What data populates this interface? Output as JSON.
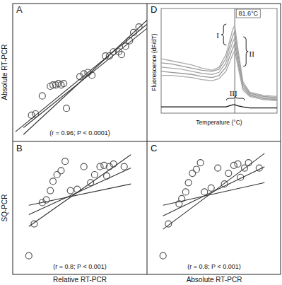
{
  "chart_data": [
    {
      "type": "scatter",
      "title": "A",
      "y_label": "Absolute RT-PCR",
      "annotation": "(r = 0.96; P < 0.0001)",
      "xlim": [
        0,
        10
      ],
      "ylim": [
        0,
        10
      ],
      "tick_labels": false,
      "series": [
        {
          "type": "scatter",
          "marker": "circle",
          "color": "#555555",
          "x": [
            1.4,
            1.7,
            2.2,
            2.8,
            3.0,
            3.2,
            3.4,
            3.6,
            3.8,
            4.0,
            5.0,
            5.3,
            5.6,
            5.9,
            6.9,
            7.2,
            7.5,
            7.9,
            8.1,
            8.4,
            8.7,
            9.0,
            9.4
          ],
          "values": [
            1.9,
            2.0,
            3.3,
            4.0,
            4.1,
            4.1,
            4.2,
            4.1,
            4.2,
            2.4,
            4.7,
            4.9,
            5.0,
            4.8,
            6.2,
            6.2,
            6.5,
            6.5,
            6.3,
            6.9,
            7.3,
            7.9,
            8.3
          ]
        },
        {
          "type": "line",
          "color": "#333333",
          "x": [
            0.2,
            10
          ],
          "values": [
            0.7,
            8.5
          ]
        },
        {
          "type": "line",
          "color": "#333333",
          "x": [
            0.8,
            10
          ],
          "values": [
            1.0,
            8.2
          ]
        },
        {
          "type": "line",
          "color": "#333333",
          "x": [
            0.8,
            10
          ],
          "values": [
            0.5,
            8.8
          ]
        }
      ]
    },
    {
      "type": "line",
      "title": "D",
      "x_label": "Temperature (°C)",
      "y_label": "Fluorescence (dF/dT)",
      "xlim": [
        60,
        94
      ],
      "ylim": [
        0,
        1
      ],
      "tick_labels": false,
      "vlines": [
        {
          "value": 81.6,
          "label": "81.6°C"
        }
      ],
      "annotations": [
        "I",
        "II",
        "III"
      ],
      "series": [
        {
          "color": "#aaaaaa",
          "x": [
            60,
            63,
            66,
            69,
            72,
            75,
            77,
            79,
            80,
            81,
            81.6,
            82.5,
            84,
            86,
            90,
            94
          ],
          "values": [
            0.52,
            0.5,
            0.48,
            0.46,
            0.43,
            0.41,
            0.44,
            0.56,
            0.68,
            0.8,
            0.84,
            0.62,
            0.3,
            0.2,
            0.17,
            0.16
          ]
        },
        {
          "color": "#999999",
          "x": [
            60,
            63,
            66,
            69,
            72,
            75,
            77,
            79,
            80,
            81,
            81.6,
            82.5,
            84,
            86,
            90,
            94
          ],
          "values": [
            0.48,
            0.47,
            0.45,
            0.43,
            0.41,
            0.4,
            0.42,
            0.52,
            0.63,
            0.74,
            0.78,
            0.57,
            0.28,
            0.19,
            0.16,
            0.15
          ]
        },
        {
          "color": "#aaaaaa",
          "x": [
            60,
            63,
            66,
            69,
            72,
            75,
            77,
            79,
            80,
            81,
            81.6,
            82.5,
            84,
            86,
            90,
            94
          ],
          "values": [
            0.44,
            0.43,
            0.42,
            0.4,
            0.38,
            0.37,
            0.39,
            0.48,
            0.58,
            0.68,
            0.72,
            0.53,
            0.26,
            0.18,
            0.15,
            0.14
          ]
        },
        {
          "color": "#999999",
          "x": [
            60,
            63,
            66,
            69,
            72,
            75,
            77,
            79,
            80,
            81,
            81.6,
            82.5,
            84,
            86,
            90,
            94
          ],
          "values": [
            0.4,
            0.39,
            0.38,
            0.37,
            0.35,
            0.34,
            0.36,
            0.44,
            0.53,
            0.62,
            0.66,
            0.49,
            0.24,
            0.17,
            0.14,
            0.13
          ]
        },
        {
          "color": "#aaaaaa",
          "x": [
            60,
            63,
            66,
            69,
            72,
            75,
            77,
            79,
            80,
            81,
            81.6,
            82.5,
            84,
            86,
            90,
            94
          ],
          "values": [
            0.36,
            0.36,
            0.35,
            0.34,
            0.32,
            0.31,
            0.33,
            0.4,
            0.48,
            0.56,
            0.6,
            0.45,
            0.22,
            0.16,
            0.13,
            0.12
          ]
        },
        {
          "color": "#111111",
          "x": [
            60,
            63,
            66,
            69,
            72,
            75,
            77,
            79,
            80,
            81,
            81.6,
            82.5,
            84,
            86,
            90,
            94
          ],
          "values": [
            0.06,
            0.06,
            0.06,
            0.06,
            0.06,
            0.06,
            0.06,
            0.06,
            0.07,
            0.08,
            0.08,
            0.07,
            0.06,
            0.05,
            0.05,
            0.05
          ]
        }
      ]
    },
    {
      "type": "scatter",
      "title": "B",
      "y_label": "SQ-PCR",
      "x_label": "Relative RT-PCR",
      "annotation": "(r = 0.8; P < 0.001)",
      "xlim": [
        0,
        10
      ],
      "ylim": [
        0,
        10
      ],
      "tick_labels": false,
      "series": [
        {
          "type": "scatter",
          "marker": "circle",
          "color": "#555555",
          "x": [
            1.2,
            1.6,
            2.2,
            2.5,
            2.8,
            3.0,
            3.3,
            3.6,
            3.9,
            4.3,
            4.8,
            5.3,
            5.8,
            6.1,
            6.5,
            6.8,
            7.0,
            7.2,
            7.5,
            8.3
          ],
          "values": [
            1.4,
            3.8,
            5.4,
            5.6,
            6.3,
            7.0,
            7.5,
            7.8,
            8.5,
            6.3,
            6.4,
            8.1,
            6.9,
            7.5,
            8.1,
            8.2,
            7.4,
            8.1,
            8.3,
            8.1
          ]
        },
        {
          "type": "line",
          "color": "#333333",
          "x": [
            1.2,
            8.8
          ],
          "values": [
            3.6,
            9.0
          ]
        },
        {
          "type": "line",
          "color": "#333333",
          "x": [
            1.2,
            8.8
          ],
          "values": [
            5.2,
            6.8
          ]
        },
        {
          "type": "line",
          "color": "#333333",
          "x": [
            1.2,
            8.8
          ],
          "values": [
            4.5,
            8.0
          ]
        }
      ]
    },
    {
      "type": "scatter",
      "title": "C",
      "x_label": "Absolute RT-PCR",
      "annotation": "(r = 0.8; P < 0.001)",
      "xlim": [
        0,
        10
      ],
      "ylim": [
        0,
        10
      ],
      "tick_labels": false,
      "series": [
        {
          "type": "scatter",
          "marker": "circle",
          "color": "#555555",
          "x": [
            1.2,
            1.6,
            2.4,
            2.6,
            2.9,
            3.1,
            3.4,
            3.7,
            4.0,
            4.3,
            4.8,
            5.3,
            5.8,
            6.1,
            6.5,
            6.8,
            7.0,
            7.3,
            7.6,
            8.4
          ],
          "values": [
            1.4,
            3.8,
            5.3,
            5.7,
            6.2,
            6.9,
            7.6,
            7.9,
            8.4,
            6.2,
            6.5,
            8.0,
            6.8,
            7.6,
            8.2,
            8.3,
            7.3,
            8.0,
            8.4,
            8.0
          ]
        },
        {
          "type": "line",
          "color": "#333333",
          "x": [
            1.2,
            8.8
          ],
          "values": [
            3.4,
            9.1
          ]
        },
        {
          "type": "line",
          "color": "#333333",
          "x": [
            1.2,
            8.8
          ],
          "values": [
            5.2,
            6.9
          ]
        },
        {
          "type": "line",
          "color": "#333333",
          "x": [
            1.2,
            8.8
          ],
          "values": [
            4.4,
            8.1
          ]
        }
      ]
    }
  ]
}
